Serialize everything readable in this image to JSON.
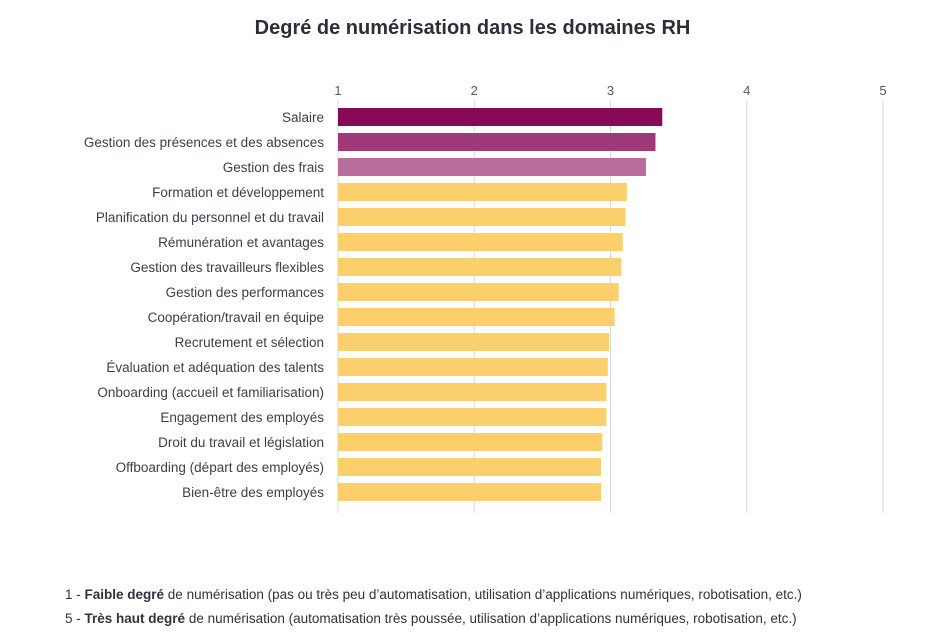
{
  "chart_data": {
    "type": "bar",
    "orientation": "horizontal",
    "title": "Degré de numérisation dans les domaines RH",
    "xlim": [
      1,
      5
    ],
    "xticks": [
      "1",
      "2",
      "3",
      "4",
      "5"
    ],
    "grid": true,
    "categories": [
      "Salaire",
      "Gestion des présences et des absences",
      "Gestion des frais",
      "Formation et développement",
      "Planification du personnel et du travail",
      "Rémunération et avantages",
      "Gestion des travailleurs flexibles",
      "Gestion des performances",
      "Coopération/travail en équipe",
      "Recrutement et sélection",
      "Évaluation et adéquation des talents",
      "Onboarding (accueil et familiarisation)",
      "Engagement des employés",
      "Droit du travail et législation",
      "Offboarding (départ des employés)",
      "Bien-être des employés"
    ],
    "values": [
      3.38,
      3.33,
      3.26,
      3.12,
      3.11,
      3.09,
      3.08,
      3.06,
      3.03,
      2.99,
      2.98,
      2.97,
      2.97,
      2.94,
      2.93,
      2.93
    ],
    "colors": [
      "#870a56",
      "#a0397a",
      "#b86e9c",
      "#fbcf6c",
      "#fbcf6c",
      "#fbcf6c",
      "#fbcf6c",
      "#fbcf6c",
      "#fbcf6c",
      "#fbcf6c",
      "#fbcf6c",
      "#fbcf6c",
      "#fbcf6c",
      "#fbcf6c",
      "#fbcf6c",
      "#fbcf6c"
    ]
  },
  "notes": [
    {
      "prefix": "1 - ",
      "bold": "Faible degré",
      "rest": " de numérisation (pas ou très peu d’automatisation, utilisation d’applications numériques, robotisation, etc.)"
    },
    {
      "prefix": "5 - ",
      "bold": "Très haut degré",
      "rest": " de numérisation (automatisation très poussée, utilisation d’applications numériques, robotisation, etc.)"
    }
  ]
}
